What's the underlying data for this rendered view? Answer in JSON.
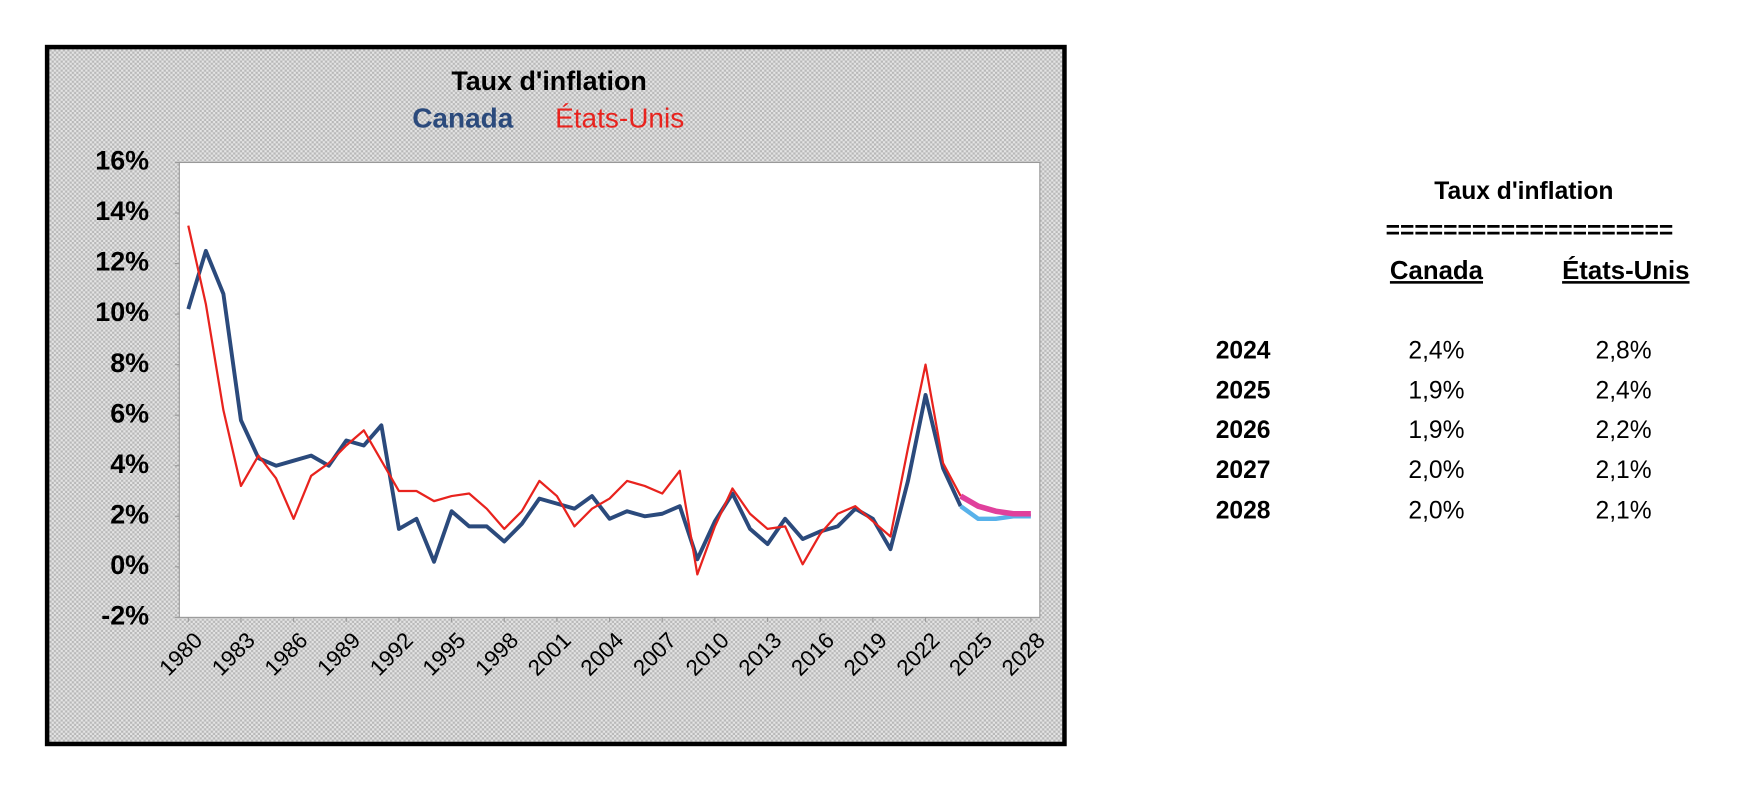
{
  "chart_data": {
    "type": "line",
    "title": "Taux d'inflation",
    "x": [
      1980,
      1981,
      1982,
      1983,
      1984,
      1985,
      1986,
      1987,
      1988,
      1989,
      1990,
      1991,
      1992,
      1993,
      1994,
      1995,
      1996,
      1997,
      1998,
      1999,
      2000,
      2001,
      2002,
      2003,
      2004,
      2005,
      2006,
      2007,
      2008,
      2009,
      2010,
      2011,
      2012,
      2013,
      2014,
      2015,
      2016,
      2017,
      2018,
      2019,
      2020,
      2021,
      2022,
      2023,
      2024,
      2025,
      2026,
      2027,
      2028
    ],
    "series": [
      {
        "name": "Canada",
        "color": "#2b4a7c",
        "forecast_color": "#58b2ea",
        "values": [
          10.2,
          12.5,
          10.8,
          5.8,
          4.3,
          4.0,
          4.2,
          4.4,
          4.0,
          5.0,
          4.8,
          5.6,
          1.5,
          1.9,
          0.2,
          2.2,
          1.6,
          1.6,
          1.0,
          1.7,
          2.7,
          2.5,
          2.3,
          2.8,
          1.9,
          2.2,
          2.0,
          2.1,
          2.4,
          0.3,
          1.8,
          2.9,
          1.5,
          0.9,
          1.9,
          1.1,
          1.4,
          1.6,
          2.3,
          1.9,
          0.7,
          3.4,
          6.8,
          3.9,
          2.4,
          1.9,
          1.9,
          2.0,
          2.0
        ]
      },
      {
        "name": "États-Unis",
        "color": "#e8231e",
        "forecast_color": "#e0409c",
        "values": [
          13.5,
          10.4,
          6.2,
          3.2,
          4.4,
          3.5,
          1.9,
          3.6,
          4.1,
          4.8,
          5.4,
          4.2,
          3.0,
          3.0,
          2.6,
          2.8,
          2.9,
          2.3,
          1.5,
          2.2,
          3.4,
          2.8,
          1.6,
          2.3,
          2.7,
          3.4,
          3.2,
          2.9,
          3.8,
          -0.3,
          1.6,
          3.1,
          2.1,
          1.5,
          1.6,
          0.1,
          1.3,
          2.1,
          2.4,
          1.8,
          1.2,
          4.7,
          8.0,
          4.1,
          2.8,
          2.4,
          2.2,
          2.1,
          2.1
        ]
      }
    ],
    "forecast_from": 2024,
    "xlim": [
      1980,
      2028
    ],
    "xticks": [
      1980,
      1983,
      1986,
      1989,
      1992,
      1995,
      1998,
      2001,
      2004,
      2007,
      2010,
      2013,
      2016,
      2019,
      2022,
      2025,
      2028
    ],
    "ylim": [
      -2,
      16
    ],
    "yticks": [
      {
        "value": -2,
        "label": "-2%"
      },
      {
        "value": 0,
        "label": "0%"
      },
      {
        "value": 2,
        "label": "2%"
      },
      {
        "value": 4,
        "label": "4%"
      },
      {
        "value": 6,
        "label": "6%"
      },
      {
        "value": 8,
        "label": "8%"
      },
      {
        "value": 10,
        "label": "10%"
      },
      {
        "value": 12,
        "label": "12%"
      },
      {
        "value": 14,
        "label": "14%"
      },
      {
        "value": 16,
        "label": "16%"
      }
    ],
    "grid": false
  },
  "table": {
    "title": "Taux d'inflation",
    "separator": "====================",
    "columns": [
      "Canada",
      "États-Unis"
    ],
    "rows": [
      [
        "2024",
        "2,4%",
        "2,8%"
      ],
      [
        "2025",
        "1,9%",
        "2,4%"
      ],
      [
        "2026",
        "1,9%",
        "2,2%"
      ],
      [
        "2027",
        "2,0%",
        "2,1%"
      ],
      [
        "2028",
        "2,0%",
        "2,1%"
      ]
    ]
  }
}
